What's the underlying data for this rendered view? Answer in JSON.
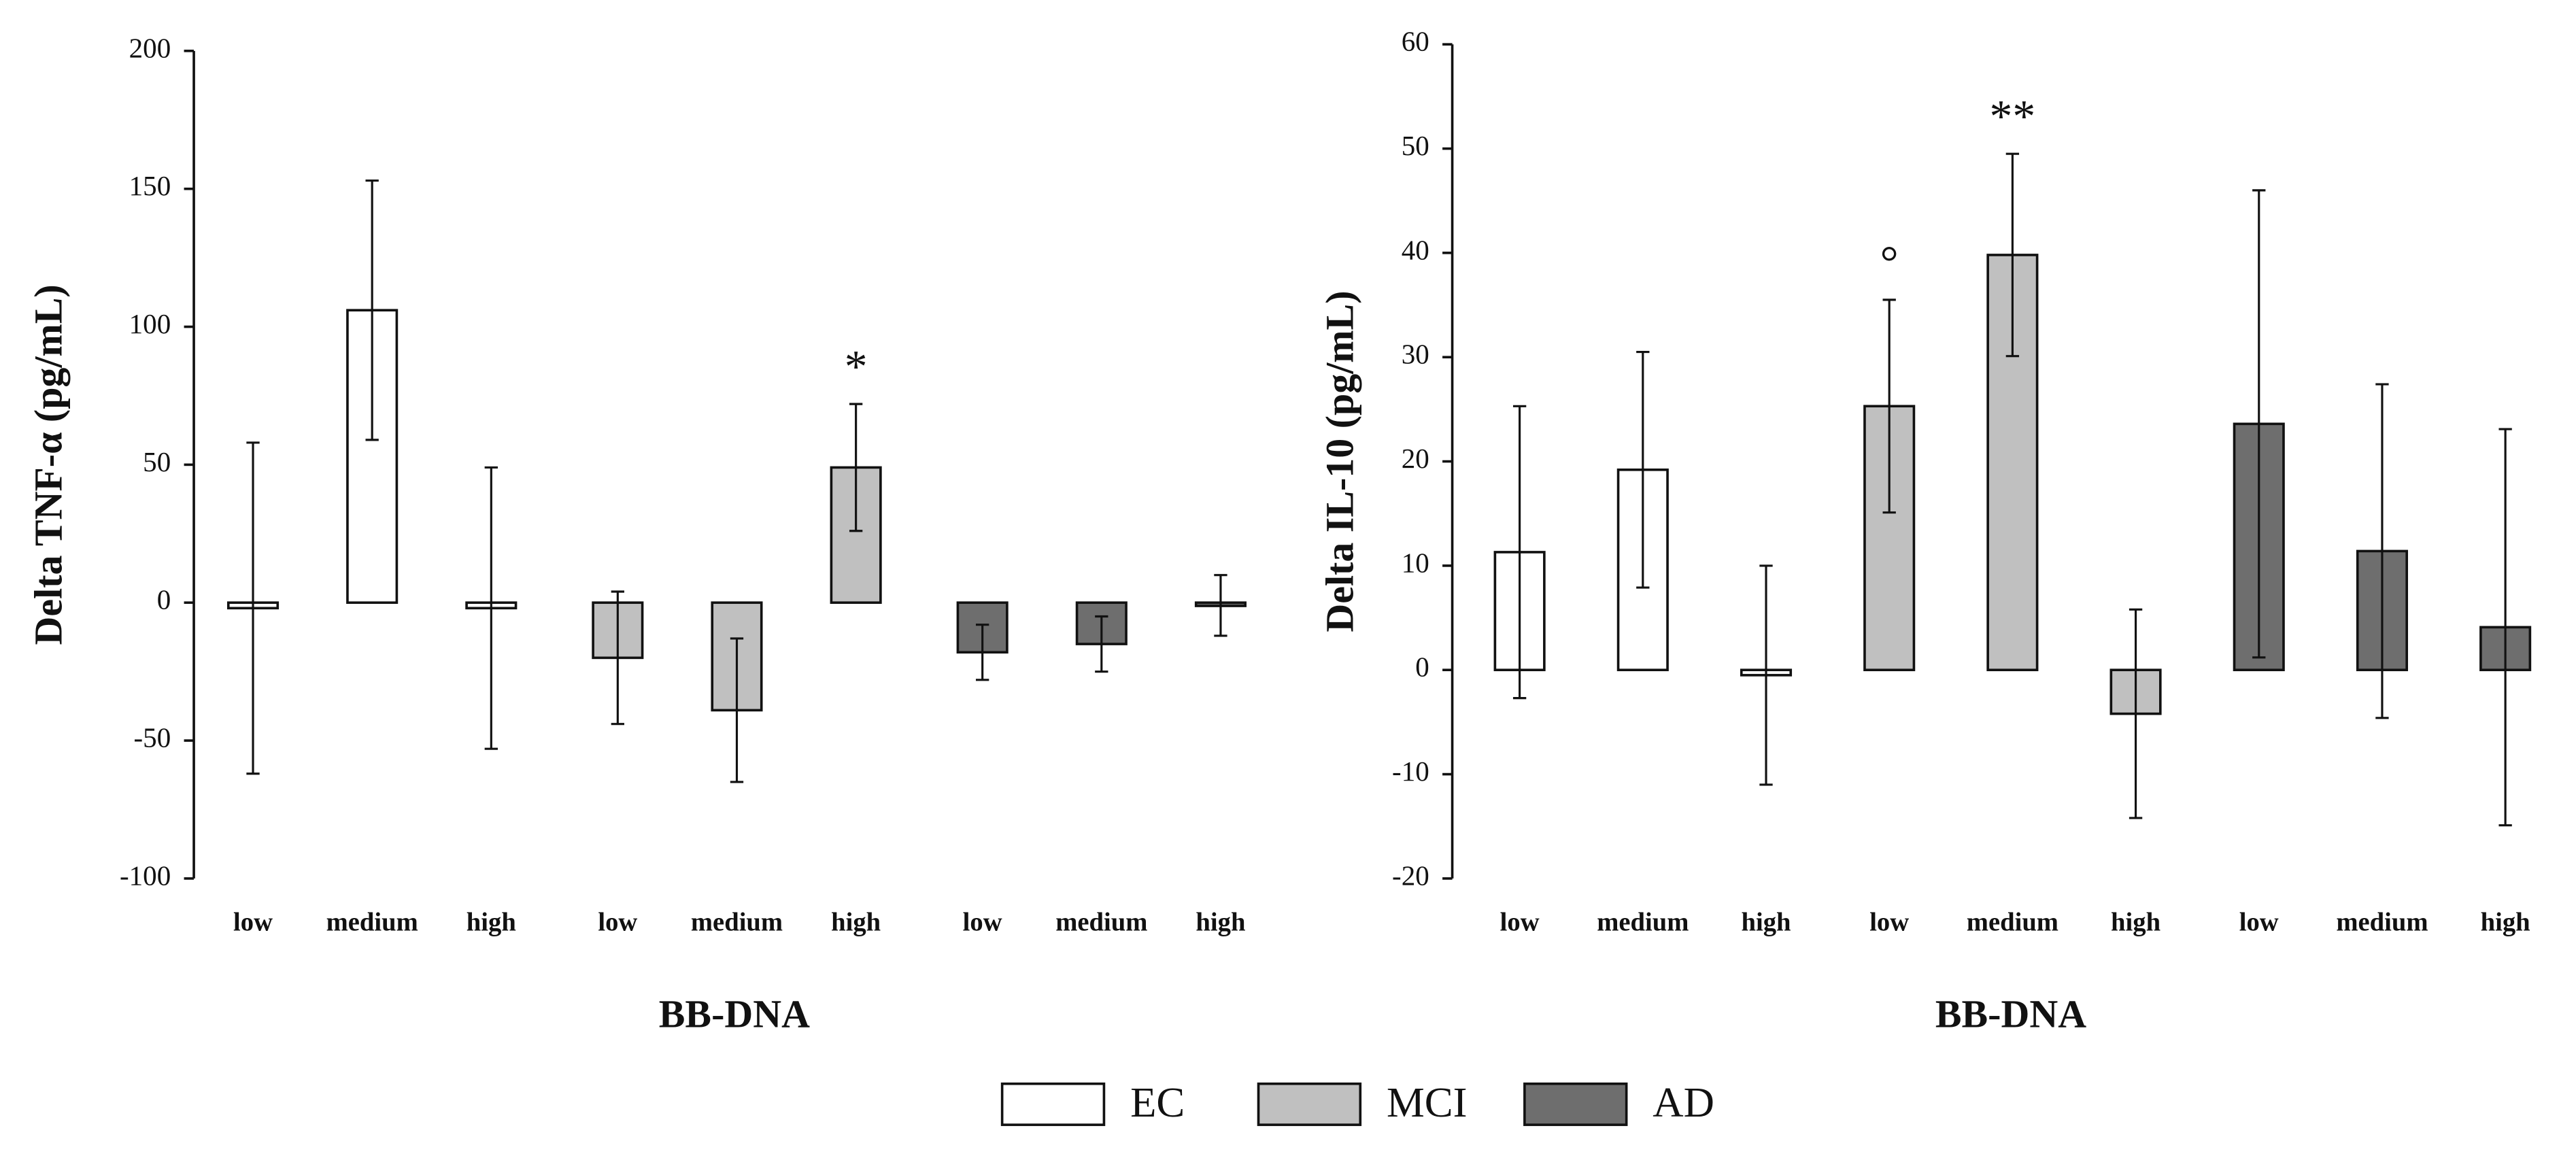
{
  "chart_data": [
    {
      "type": "bar",
      "y_label": "Delta TNF-α (pg/mL)",
      "x_label": "BB-DNA",
      "categories": [
        "low",
        "medium",
        "high"
      ],
      "ylim": [
        -100,
        200
      ],
      "yticks": [
        -100,
        -50,
        0,
        50,
        100,
        150,
        200
      ],
      "series": [
        {
          "name": "EC",
          "color": "#ffffff",
          "values": [
            -2,
            106,
            -2
          ],
          "errors": [
            60,
            47,
            51
          ],
          "labels": [
            null,
            null,
            null
          ]
        },
        {
          "name": "MCI",
          "color": "#c0c0c0",
          "values": [
            -20,
            -39,
            49
          ],
          "errors": [
            24,
            26,
            23
          ],
          "labels": [
            null,
            null,
            "*"
          ]
        },
        {
          "name": "AD",
          "color": "#6e6e6e",
          "values": [
            -18,
            -15,
            -1
          ],
          "errors": [
            10,
            10,
            11
          ],
          "labels": [
            null,
            null,
            null
          ]
        }
      ]
    },
    {
      "type": "bar",
      "y_label": "Delta IL-10 (pg/mL)",
      "x_label": "BB-DNA",
      "categories": [
        "low",
        "medium",
        "high"
      ],
      "ylim": [
        -20,
        60
      ],
      "yticks": [
        -20,
        -10,
        0,
        10,
        20,
        30,
        40,
        50,
        60
      ],
      "series": [
        {
          "name": "EC",
          "color": "#ffffff",
          "values": [
            11.3,
            19.2,
            -0.5
          ],
          "errors": [
            14,
            11.3,
            10.5
          ],
          "labels": [
            null,
            null,
            null
          ]
        },
        {
          "name": "MCI",
          "color": "#c0c0c0",
          "values": [
            25.3,
            39.8,
            -4.2
          ],
          "errors": [
            10.2,
            9.7,
            10
          ],
          "labels": [
            "°",
            "**",
            null
          ]
        },
        {
          "name": "AD",
          "color": "#6e6e6e",
          "values": [
            23.6,
            11.4,
            4.1
          ],
          "errors": [
            22.4,
            16,
            19
          ],
          "labels": [
            null,
            null,
            null
          ]
        }
      ]
    }
  ]
}
